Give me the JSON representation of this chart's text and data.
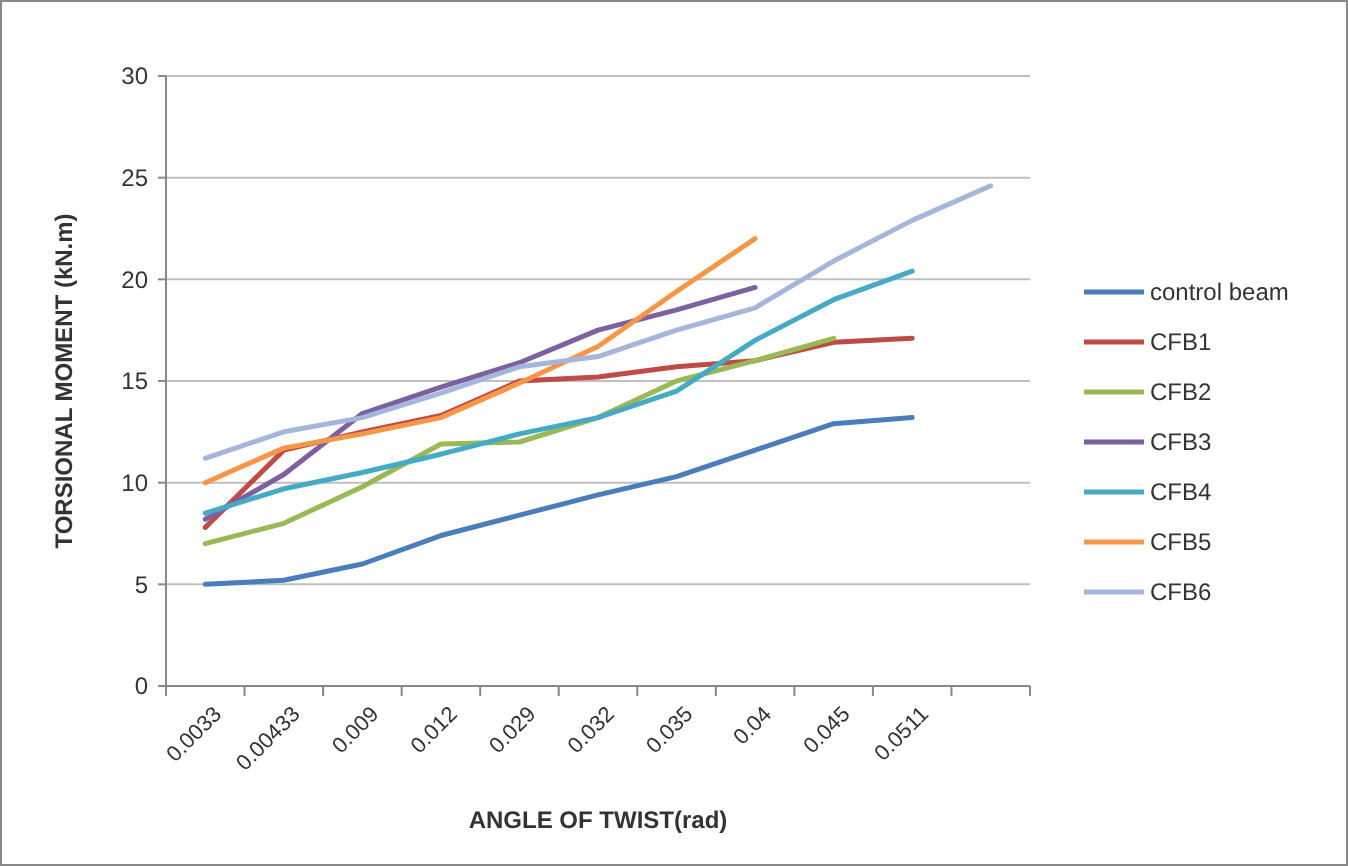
{
  "chart_data": {
    "type": "line",
    "xlabel": "ANGLE OF TWIST(rad)",
    "ylabel": "TORSIONAL MOMENT (kN.m)",
    "categories": [
      "0.0033",
      "0.00433",
      "0.009",
      "0.012",
      "0.029",
      "0.032",
      "0.035",
      "0.04",
      "0.045",
      "0.0511",
      null
    ],
    "series": [
      {
        "name": "control beam",
        "color": "#4a7ebb",
        "values": [
          5,
          5.2,
          6,
          7.4,
          8.4,
          9.4,
          10.3,
          11.6,
          12.9,
          13.2,
          null
        ]
      },
      {
        "name": "CFB1",
        "color": "#be4b48",
        "values": [
          7.8,
          11.6,
          12.5,
          13.3,
          15.0,
          15.2,
          15.7,
          16.0,
          16.9,
          17.1,
          null
        ]
      },
      {
        "name": "CFB2",
        "color": "#98b954",
        "values": [
          7.0,
          8.0,
          9.8,
          11.9,
          12.0,
          13.2,
          15.0,
          16.0,
          17.1,
          null,
          null
        ]
      },
      {
        "name": "CFB3",
        "color": "#7d60a0",
        "values": [
          8.2,
          10.4,
          13.4,
          14.7,
          15.9,
          17.5,
          18.5,
          19.6,
          null,
          null,
          null
        ]
      },
      {
        "name": "CFB4",
        "color": "#46aac5",
        "values": [
          8.5,
          9.7,
          10.5,
          11.4,
          12.4,
          13.2,
          14.5,
          17.0,
          19.0,
          20.4,
          null
        ]
      },
      {
        "name": "CFB5",
        "color": "#f79646",
        "values": [
          10.0,
          11.7,
          12.4,
          13.2,
          14.9,
          16.7,
          19.4,
          22.0,
          null,
          null,
          null
        ]
      },
      {
        "name": "CFB6",
        "color": "#a5b6db",
        "values": [
          11.2,
          12.5,
          13.2,
          14.4,
          15.7,
          16.2,
          17.5,
          18.6,
          20.9,
          22.9,
          24.6
        ]
      }
    ],
    "ylim": [
      0,
      30
    ],
    "yticks": [
      0,
      5,
      10,
      15,
      20,
      25,
      30
    ],
    "grid": "y",
    "legend": "right",
    "marker": "none"
  }
}
